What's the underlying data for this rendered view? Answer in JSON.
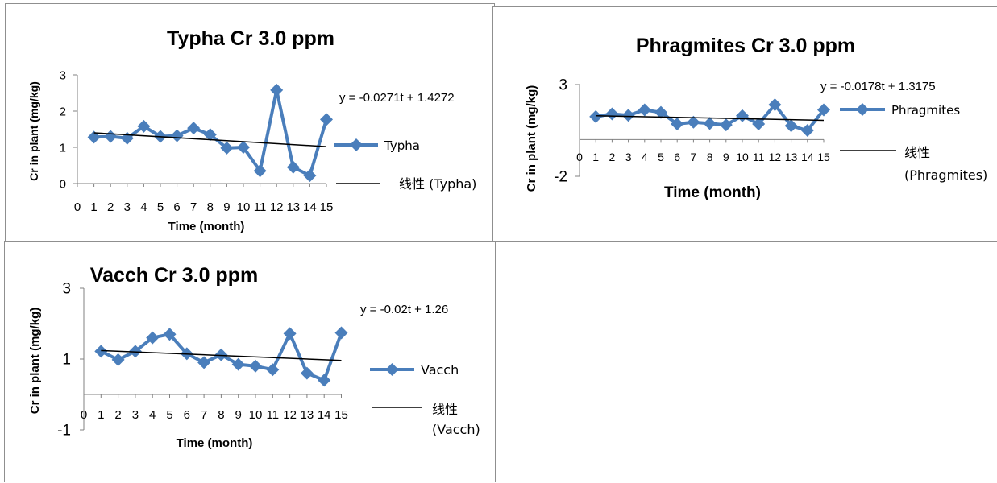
{
  "chart_data": [
    {
      "type": "line",
      "title": "Typha Cr 3.0 ppm",
      "xlabel": "Time (month)",
      "ylabel": "Cr in plant (mg/kg)",
      "x_ticks": [
        "0",
        "1",
        "2",
        "3",
        "4",
        "5",
        "6",
        "7",
        "8",
        "9",
        "10",
        "11",
        "12",
        "13",
        "14",
        "15"
      ],
      "y_ticks": [
        "0",
        "1",
        "2",
        "3"
      ],
      "xlim": [
        0,
        15
      ],
      "ylim": [
        0,
        3
      ],
      "series": [
        {
          "name": "Typha",
          "color": "#4a7ebb",
          "marker": "diamond",
          "x": [
            1,
            2,
            3,
            4,
            5,
            6,
            7,
            8,
            9,
            10,
            11,
            12,
            13,
            14,
            15
          ],
          "y": [
            1.28,
            1.3,
            1.25,
            1.58,
            1.3,
            1.32,
            1.53,
            1.35,
            0.98,
            1.0,
            0.35,
            2.58,
            0.45,
            0.22,
            1.77
          ]
        }
      ],
      "trendline": {
        "label": "线性 (Typha)",
        "slope": -0.0271,
        "intercept": 1.4272,
        "color": "#000000"
      },
      "equation": "y = -0.0271t + 1.4272",
      "legend": "right",
      "grid": false
    },
    {
      "type": "line",
      "title": "Phragmites Cr 3.0 ppm",
      "xlabel": "Time (month)",
      "ylabel": "Cr in plant (mg/kg)",
      "x_ticks": [
        "0",
        "1",
        "2",
        "3",
        "4",
        "5",
        "6",
        "7",
        "8",
        "9",
        "10",
        "11",
        "12",
        "13",
        "14",
        "15"
      ],
      "y_ticks": [
        "-2",
        "3"
      ],
      "xlim": [
        0,
        15
      ],
      "ylim": [
        -2,
        3
      ],
      "series": [
        {
          "name": "Phragmites",
          "color": "#4a7ebb",
          "marker": "diamond",
          "x": [
            1,
            2,
            3,
            4,
            5,
            6,
            7,
            8,
            9,
            10,
            11,
            12,
            13,
            14,
            15
          ],
          "y": [
            1.25,
            1.4,
            1.32,
            1.62,
            1.48,
            0.85,
            0.95,
            0.88,
            0.8,
            1.3,
            0.85,
            1.9,
            0.75,
            0.5,
            1.62
          ]
        }
      ],
      "trendline": {
        "label": "线性 (Phragmites)",
        "slope": -0.0178,
        "intercept": 1.3175,
        "color": "#000000"
      },
      "equation": "y = -0.0178t + 1.3175",
      "legend": "right",
      "grid": false
    },
    {
      "type": "line",
      "title": "Vacch Cr 3.0 ppm",
      "xlabel": "Time (month)",
      "ylabel": "Cr in plant (mg/kg)",
      "x_ticks": [
        "0",
        "1",
        "2",
        "3",
        "4",
        "5",
        "6",
        "7",
        "8",
        "9",
        "10",
        "11",
        "12",
        "13",
        "14",
        "15"
      ],
      "y_ticks": [
        "-1",
        "1",
        "3"
      ],
      "xlim": [
        0,
        15
      ],
      "ylim": [
        -1,
        3
      ],
      "series": [
        {
          "name": "Vacch",
          "color": "#4a7ebb",
          "marker": "diamond",
          "x": [
            1,
            2,
            3,
            4,
            5,
            6,
            7,
            8,
            9,
            10,
            11,
            12,
            13,
            14,
            15
          ],
          "y": [
            1.22,
            0.98,
            1.22,
            1.6,
            1.7,
            1.15,
            0.9,
            1.12,
            0.85,
            0.8,
            0.7,
            1.72,
            0.6,
            0.4,
            1.74
          ]
        }
      ],
      "trendline": {
        "label": "线性 (Vacch)",
        "slope": -0.02,
        "intercept": 1.26,
        "color": "#000000"
      },
      "equation": "y = -0.02t + 1.26",
      "legend": "right",
      "grid": false
    }
  ]
}
